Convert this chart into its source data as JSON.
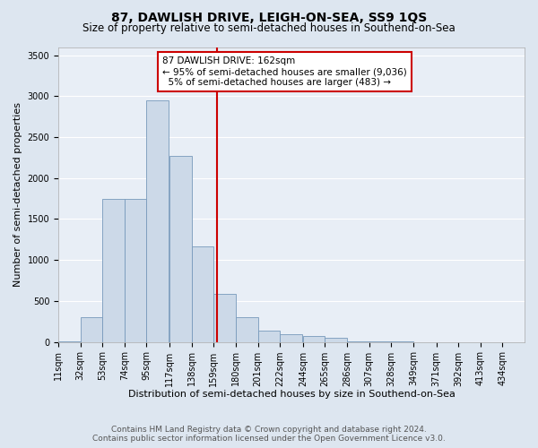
{
  "title": "87, DAWLISH DRIVE, LEIGH-ON-SEA, SS9 1QS",
  "subtitle": "Size of property relative to semi-detached houses in Southend-on-Sea",
  "xlabel": "Distribution of semi-detached houses by size in Southend-on-Sea",
  "ylabel": "Number of semi-detached properties",
  "footer_line1": "Contains HM Land Registry data © Crown copyright and database right 2024.",
  "footer_line2": "Contains public sector information licensed under the Open Government Licence v3.0.",
  "bin_labels": [
    "11sqm",
    "32sqm",
    "53sqm",
    "74sqm",
    "95sqm",
    "117sqm",
    "138sqm",
    "159sqm",
    "180sqm",
    "201sqm",
    "222sqm",
    "244sqm",
    "265sqm",
    "286sqm",
    "307sqm",
    "328sqm",
    "349sqm",
    "371sqm",
    "392sqm",
    "413sqm",
    "434sqm"
  ],
  "bin_edges": [
    11,
    32,
    53,
    74,
    95,
    117,
    138,
    159,
    180,
    201,
    222,
    244,
    265,
    286,
    307,
    328,
    349,
    371,
    392,
    413,
    434
  ],
  "bar_heights": [
    5,
    300,
    1750,
    1750,
    2950,
    2270,
    1170,
    590,
    300,
    140,
    90,
    70,
    50,
    5,
    3,
    2,
    1,
    1,
    0,
    0,
    0
  ],
  "bar_color": "#ccd9e8",
  "bar_edge_color": "#7799bb",
  "property_size": 162,
  "vline_color": "#cc0000",
  "pct_smaller": 95,
  "count_smaller": 9036,
  "pct_larger": 5,
  "count_larger": 483,
  "annotation_box_color": "#cc0000",
  "ylim": [
    0,
    3600
  ],
  "yticks": [
    0,
    500,
    1000,
    1500,
    2000,
    2500,
    3000,
    3500
  ],
  "background_color": "#dde6f0",
  "plot_background": "#e8eef6",
  "grid_color": "#ffffff",
  "title_fontsize": 10,
  "subtitle_fontsize": 8.5,
  "tick_fontsize": 7,
  "ylabel_fontsize": 8,
  "xlabel_fontsize": 8,
  "footer_fontsize": 6.5,
  "annot_fontsize": 7.5
}
